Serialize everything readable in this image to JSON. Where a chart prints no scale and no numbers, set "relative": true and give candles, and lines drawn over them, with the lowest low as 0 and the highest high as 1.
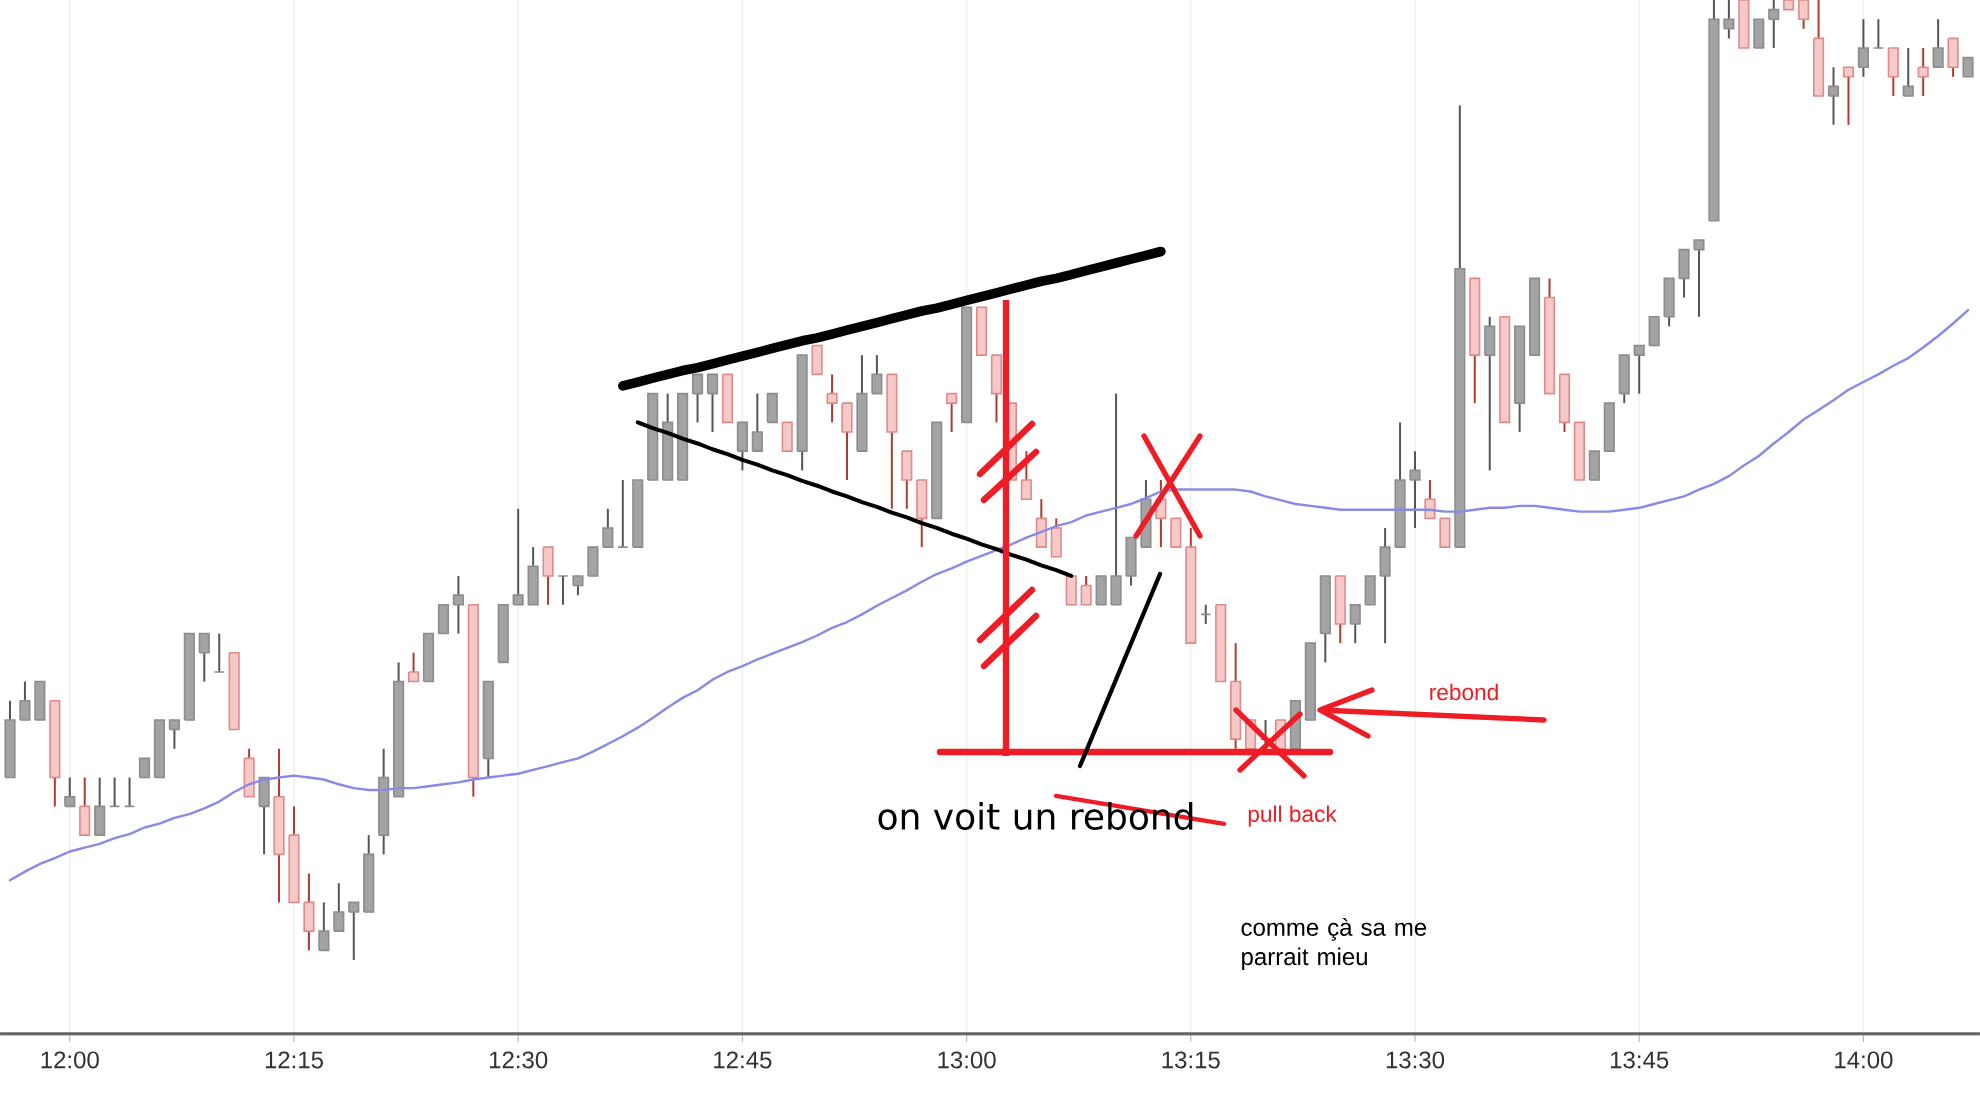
{
  "chart_data": {
    "type": "candlestick",
    "relative": true,
    "grid": true,
    "categories": [
      null,
      null,
      null,
      null,
      "12:00",
      null,
      null,
      null,
      null,
      null,
      null,
      null,
      null,
      null,
      null,
      null,
      null,
      null,
      null,
      "12:15",
      null,
      null,
      null,
      null,
      null,
      null,
      null,
      null,
      null,
      null,
      null,
      null,
      null,
      null,
      "12:30",
      null,
      null,
      null,
      null,
      null,
      null,
      null,
      null,
      null,
      null,
      null,
      null,
      null,
      null,
      "12:45",
      null,
      null,
      null,
      null,
      null,
      null,
      null,
      null,
      null,
      null,
      null,
      null,
      null,
      null,
      "13:00",
      null,
      null,
      null,
      null,
      null,
      null,
      null,
      null,
      null,
      null,
      null,
      null,
      null,
      null,
      "13:15",
      null,
      null,
      null,
      null,
      null,
      null,
      null,
      null,
      null,
      null,
      null,
      null,
      null,
      null,
      "13:30",
      null,
      null,
      null,
      null,
      null,
      null,
      null,
      null,
      null,
      null,
      null,
      null,
      null,
      null,
      "13:45",
      null,
      null,
      null,
      null,
      null,
      null,
      null,
      null,
      null,
      null,
      null,
      null,
      null,
      null,
      "14:00",
      null,
      null,
      null,
      null,
      null,
      null,
      null
    ],
    "ohlc": [
      [
        0.19,
        0.27,
        0.19,
        0.25
      ],
      [
        0.25,
        0.29,
        0.25,
        0.27
      ],
      [
        0.25,
        0.29,
        0.25,
        0.29
      ],
      [
        0.27,
        0.27,
        0.16,
        0.19
      ],
      [
        0.16,
        0.19,
        0.16,
        0.17
      ],
      [
        0.16,
        0.19,
        0.13,
        0.13
      ],
      [
        0.13,
        0.19,
        0.13,
        0.16
      ],
      [
        0.16,
        0.19,
        0.16,
        0.16
      ],
      [
        0.16,
        0.19,
        0.16,
        0.16
      ],
      [
        0.19,
        0.21,
        0.19,
        0.21
      ],
      [
        0.19,
        0.25,
        0.19,
        0.25
      ],
      [
        0.24,
        0.25,
        0.22,
        0.25
      ],
      [
        0.25,
        0.34,
        0.25,
        0.34
      ],
      [
        0.32,
        0.34,
        0.29,
        0.34
      ],
      [
        0.3,
        0.34,
        0.3,
        0.3
      ],
      [
        0.32,
        0.32,
        0.24,
        0.24
      ],
      [
        0.21,
        0.22,
        0.17,
        0.17
      ],
      [
        0.16,
        0.19,
        0.11,
        0.19
      ],
      [
        0.17,
        0.22,
        0.06,
        0.11
      ],
      [
        0.13,
        0.16,
        0.06,
        0.06
      ],
      [
        0.06,
        0.09,
        0.01,
        0.03
      ],
      [
        0.01,
        0.06,
        0.01,
        0.03
      ],
      [
        0.03,
        0.08,
        0.03,
        0.05
      ],
      [
        0.05,
        0.06,
        0,
        0.06
      ],
      [
        0.05,
        0.13,
        0.05,
        0.11
      ],
      [
        0.13,
        0.22,
        0.11,
        0.19
      ],
      [
        0.17,
        0.31,
        0.17,
        0.29
      ],
      [
        0.3,
        0.32,
        0.29,
        0.29
      ],
      [
        0.29,
        0.34,
        0.29,
        0.34
      ],
      [
        0.34,
        0.37,
        0.34,
        0.37
      ],
      [
        0.37,
        0.4,
        0.34,
        0.38
      ],
      [
        0.37,
        0.37,
        0.17,
        0.19
      ],
      [
        0.21,
        0.29,
        0.19,
        0.29
      ],
      [
        0.31,
        0.37,
        0.31,
        0.37
      ],
      [
        0.37,
        0.47,
        0.37,
        0.38
      ],
      [
        0.37,
        0.43,
        0.37,
        0.41
      ],
      [
        0.43,
        0.43,
        0.37,
        0.4
      ],
      [
        0.4,
        0.4,
        0.37,
        0.4
      ],
      [
        0.39,
        0.4,
        0.38,
        0.4
      ],
      [
        0.4,
        0.43,
        0.4,
        0.43
      ],
      [
        0.43,
        0.47,
        0.43,
        0.45
      ],
      [
        0.43,
        0.5,
        0.43,
        0.43
      ],
      [
        0.43,
        0.5,
        0.43,
        0.5
      ],
      [
        0.5,
        0.59,
        0.5,
        0.59
      ],
      [
        0.5,
        0.59,
        0.5,
        0.56
      ],
      [
        0.5,
        0.59,
        0.5,
        0.59
      ],
      [
        0.59,
        0.61,
        0.56,
        0.61
      ],
      [
        0.59,
        0.61,
        0.55,
        0.61
      ],
      [
        0.61,
        0.61,
        0.56,
        0.56
      ],
      [
        0.53,
        0.56,
        0.51,
        0.56
      ],
      [
        0.53,
        0.59,
        0.53,
        0.55
      ],
      [
        0.56,
        0.59,
        0.56,
        0.59
      ],
      [
        0.56,
        0.56,
        0.53,
        0.53
      ],
      [
        0.53,
        0.63,
        0.51,
        0.63
      ],
      [
        0.64,
        0.64,
        0.61,
        0.61
      ],
      [
        0.59,
        0.61,
        0.56,
        0.58
      ],
      [
        0.58,
        0.58,
        0.5,
        0.55
      ],
      [
        0.53,
        0.63,
        0.53,
        0.59
      ],
      [
        0.59,
        0.63,
        0.59,
        0.61
      ],
      [
        0.61,
        0.61,
        0.47,
        0.55
      ],
      [
        0.53,
        0.53,
        0.47,
        0.5
      ],
      [
        0.5,
        0.5,
        0.43,
        0.46
      ],
      [
        0.46,
        0.56,
        0.46,
        0.56
      ],
      [
        0.59,
        0.59,
        0.55,
        0.58
      ],
      [
        0.56,
        0.68,
        0.56,
        0.68
      ],
      [
        0.68,
        0.68,
        0.63,
        0.63
      ],
      [
        0.63,
        0.63,
        0.56,
        0.59
      ],
      [
        0.58,
        0.58,
        0.5,
        0.5
      ],
      [
        0.5,
        0.53,
        0.48,
        0.48
      ],
      [
        0.46,
        0.48,
        0.43,
        0.43
      ],
      [
        0.45,
        0.46,
        0.42,
        0.42
      ],
      [
        0.4,
        0.4,
        0.37,
        0.37
      ],
      [
        0.39,
        0.4,
        0.37,
        0.37
      ],
      [
        0.37,
        0.4,
        0.37,
        0.4
      ],
      [
        0.37,
        0.59,
        0.37,
        0.4
      ],
      [
        0.4,
        0.44,
        0.39,
        0.44
      ],
      [
        0.43,
        0.5,
        0.43,
        0.48
      ],
      [
        0.48,
        0.5,
        0.43,
        0.46
      ],
      [
        0.46,
        0.46,
        0.43,
        0.43
      ],
      [
        0.43,
        0.45,
        0.33,
        0.33
      ],
      [
        0.36,
        0.37,
        0.35,
        0.36
      ],
      [
        0.37,
        0.37,
        0.29,
        0.29
      ],
      [
        0.29,
        0.33,
        0.22,
        0.23
      ],
      [
        0.25,
        0.25,
        0.22,
        0.22
      ],
      [
        0.23,
        0.25,
        0.22,
        0.23
      ],
      [
        0.25,
        0.25,
        0.22,
        0.22
      ],
      [
        0.22,
        0.27,
        0.22,
        0.27
      ],
      [
        0.25,
        0.33,
        0.25,
        0.33
      ],
      [
        0.34,
        0.4,
        0.31,
        0.4
      ],
      [
        0.4,
        0.4,
        0.33,
        0.35
      ],
      [
        0.35,
        0.37,
        0.33,
        0.37
      ],
      [
        0.37,
        0.4,
        0.37,
        0.4
      ],
      [
        0.4,
        0.45,
        0.33,
        0.43
      ],
      [
        0.43,
        0.56,
        0.43,
        0.5
      ],
      [
        0.5,
        0.53,
        0.45,
        0.51
      ],
      [
        0.48,
        0.5,
        0.46,
        0.46
      ],
      [
        0.46,
        0.46,
        0.43,
        0.43
      ],
      [
        0.43,
        0.89,
        0.43,
        0.72
      ],
      [
        0.71,
        0.71,
        0.58,
        0.63
      ],
      [
        0.63,
        0.67,
        0.51,
        0.66
      ],
      [
        0.67,
        0.67,
        0.56,
        0.56
      ],
      [
        0.58,
        0.66,
        0.55,
        0.66
      ],
      [
        0.63,
        0.71,
        0.63,
        0.71
      ],
      [
        0.69,
        0.71,
        0.59,
        0.59
      ],
      [
        0.61,
        0.61,
        0.55,
        0.56
      ],
      [
        0.56,
        0.56,
        0.5,
        0.5
      ],
      [
        0.5,
        0.53,
        0.5,
        0.53
      ],
      [
        0.53,
        0.58,
        0.53,
        0.58
      ],
      [
        0.59,
        0.63,
        0.58,
        0.63
      ],
      [
        0.63,
        0.64,
        0.59,
        0.64
      ],
      [
        0.64,
        0.67,
        0.64,
        0.67
      ],
      [
        0.67,
        0.71,
        0.66,
        0.71
      ],
      [
        0.71,
        0.74,
        0.69,
        0.74
      ],
      [
        0.74,
        0.75,
        0.67,
        0.75
      ],
      [
        0.77,
        1,
        0.77,
        0.98
      ],
      [
        0.97,
        1,
        0.96,
        0.98
      ],
      [
        1,
        1,
        0.95,
        0.95
      ],
      [
        0.95,
        0.98,
        0.95,
        0.98
      ],
      [
        0.98,
        1,
        0.95,
        0.99
      ],
      [
        1,
        1,
        0.99,
        0.99
      ],
      [
        1,
        1,
        0.97,
        0.98
      ],
      [
        0.96,
        1,
        0.9,
        0.9
      ],
      [
        0.9,
        0.93,
        0.87,
        0.91
      ],
      [
        0.93,
        0.93,
        0.87,
        0.92
      ],
      [
        0.93,
        0.98,
        0.92,
        0.95
      ],
      [
        0.95,
        0.98,
        0.95,
        0.95
      ],
      [
        0.95,
        0.95,
        0.9,
        0.92
      ],
      [
        0.9,
        0.95,
        0.9,
        0.91
      ],
      [
        0.93,
        0.95,
        0.9,
        0.92
      ],
      [
        0.93,
        0.98,
        0.93,
        0.95
      ],
      [
        0.96,
        0.96,
        0.92,
        0.93
      ],
      [
        0.92,
        0.94,
        0.92,
        0.94
      ]
    ],
    "series": [
      {
        "type": "line",
        "color": "#8a8ae6",
        "values": [
          0.083,
          0.092,
          0.1,
          0.106,
          0.113,
          0.117,
          0.121,
          0.127,
          0.131,
          0.138,
          0.142,
          0.148,
          0.152,
          0.158,
          0.165,
          0.175,
          0.183,
          0.188,
          0.19,
          0.192,
          0.19,
          0.188,
          0.183,
          0.179,
          0.177,
          0.177,
          0.179,
          0.179,
          0.181,
          0.183,
          0.185,
          0.188,
          0.19,
          0.192,
          0.194,
          0.198,
          0.202,
          0.206,
          0.21,
          0.217,
          0.225,
          0.233,
          0.242,
          0.252,
          0.263,
          0.273,
          0.281,
          0.292,
          0.3,
          0.306,
          0.313,
          0.319,
          0.325,
          0.331,
          0.338,
          0.346,
          0.352,
          0.36,
          0.369,
          0.377,
          0.385,
          0.394,
          0.402,
          0.408,
          0.415,
          0.421,
          0.427,
          0.433,
          0.44,
          0.446,
          0.452,
          0.456,
          0.463,
          0.467,
          0.471,
          0.475,
          0.481,
          0.488,
          0.49,
          0.49,
          0.49,
          0.49,
          0.49,
          0.488,
          0.483,
          0.479,
          0.475,
          0.473,
          0.471,
          0.469,
          0.469,
          0.469,
          0.469,
          0.469,
          0.469,
          0.469,
          0.467,
          0.467,
          0.469,
          0.471,
          0.471,
          0.473,
          0.473,
          0.471,
          0.469,
          0.467,
          0.467,
          0.467,
          0.469,
          0.471,
          0.475,
          0.479,
          0.483,
          0.49,
          0.496,
          0.504,
          0.515,
          0.525,
          0.538,
          0.55,
          0.563,
          0.573,
          0.583,
          0.594,
          0.602,
          0.61,
          0.619,
          0.627,
          0.638,
          0.65,
          0.663,
          0.677
        ]
      },
      {
        "type": "line",
        "color": "#000000",
        "values": [
          null,
          null,
          null,
          null,
          null,
          null,
          null,
          null,
          null,
          null,
          null,
          null,
          null,
          null,
          null,
          null,
          null,
          null,
          null,
          null,
          null,
          null,
          null,
          null,
          null,
          null,
          null,
          null,
          null,
          null,
          null,
          null,
          null,
          null,
          null,
          null,
          null,
          null,
          null,
          null,
          null,
          0.598,
          0.602,
          0.606,
          0.61,
          0.614,
          0.617,
          0.621,
          0.625,
          0.629,
          0.633,
          0.637,
          0.641,
          0.645,
          0.648,
          0.652,
          0.656,
          0.66,
          0.664,
          0.668,
          0.672,
          0.676,
          0.679,
          0.683,
          0.687,
          0.691,
          0.695,
          0.699,
          0.703,
          0.707,
          0.71,
          0.714,
          0.718,
          0.722,
          0.726,
          0.73,
          0.734,
          0.738,
          null,
          null,
          null,
          null,
          null,
          null,
          null,
          null,
          null,
          null,
          null,
          null,
          null,
          null,
          null,
          null,
          null,
          null,
          null,
          null,
          null,
          null,
          null,
          null,
          null,
          null,
          null,
          null,
          null,
          null,
          null,
          null,
          null,
          null,
          null,
          null,
          null,
          null,
          null,
          null,
          null,
          null,
          null,
          null,
          null,
          null,
          null,
          null,
          null,
          null,
          null,
          null,
          null,
          null
        ]
      },
      {
        "type": "line",
        "color": "#000000",
        "values": [
          null,
          null,
          null,
          null,
          null,
          null,
          null,
          null,
          null,
          null,
          null,
          null,
          null,
          null,
          null,
          null,
          null,
          null,
          null,
          null,
          null,
          null,
          null,
          null,
          null,
          null,
          null,
          null,
          null,
          null,
          null,
          null,
          null,
          null,
          null,
          null,
          null,
          null,
          null,
          null,
          null,
          null,
          0.56,
          0.554,
          0.549,
          0.543,
          0.538,
          0.532,
          0.527,
          0.521,
          0.516,
          0.51,
          0.505,
          0.499,
          0.494,
          0.488,
          0.483,
          0.477,
          0.472,
          0.466,
          0.461,
          0.455,
          0.45,
          0.444,
          0.439,
          0.433,
          0.428,
          0.422,
          0.417,
          0.411,
          0.406,
          0.4,
          null,
          null,
          null,
          null,
          null,
          null,
          null,
          null,
          null,
          null,
          null,
          null,
          null,
          null,
          null,
          null,
          null,
          null,
          null,
          null,
          null,
          null,
          null,
          null,
          null,
          null,
          null,
          null,
          null,
          null,
          null,
          null,
          null,
          null,
          null,
          null,
          null,
          null,
          null,
          null,
          null,
          null,
          null,
          null,
          null,
          null,
          null,
          null,
          null,
          null,
          null,
          null,
          null,
          null,
          null,
          null,
          null,
          null,
          null,
          null
        ]
      }
    ],
    "annotations": [
      "on voit un rebond",
      "rebond",
      "pull back",
      "comme çà sa me parrait mieu"
    ]
  }
}
